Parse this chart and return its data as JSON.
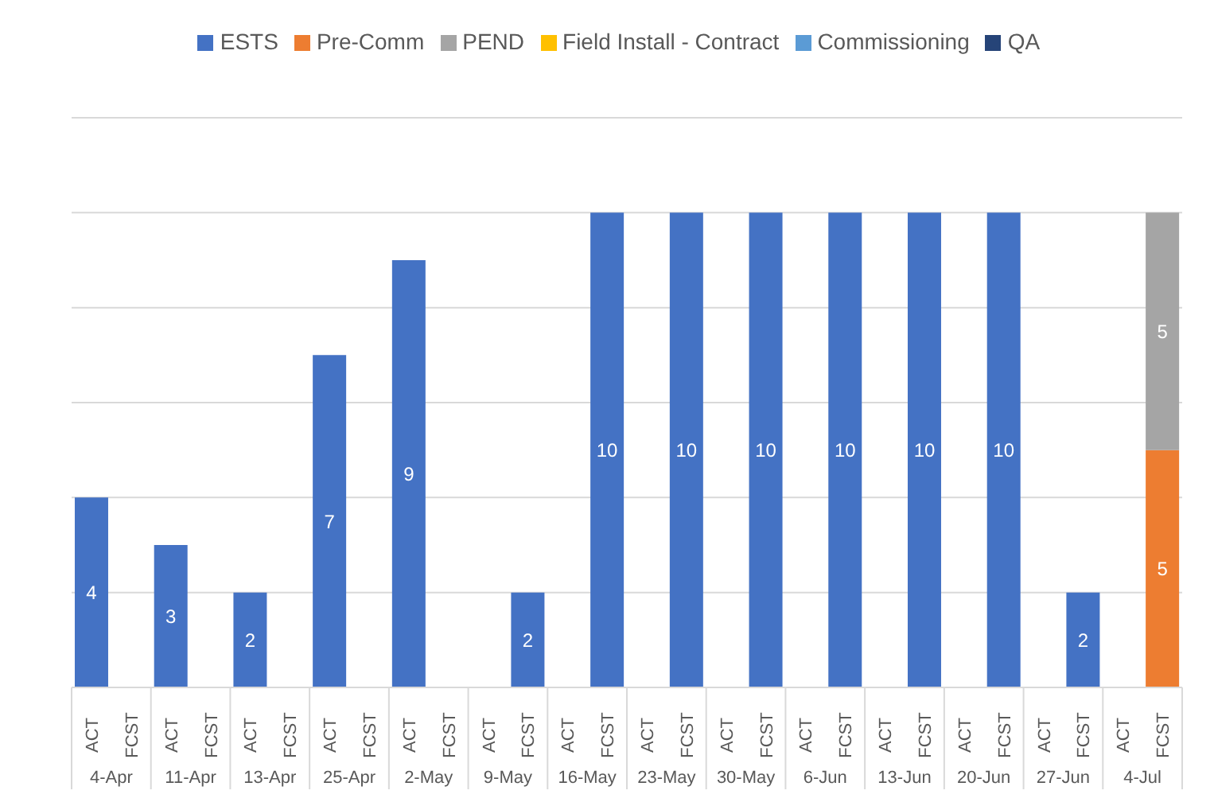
{
  "chart_data": {
    "type": "bar",
    "stacked": true,
    "categories": [
      "ACT",
      "FCST",
      "ACT",
      "FCST",
      "ACT",
      "FCST",
      "ACT",
      "FCST",
      "ACT",
      "FCST",
      "ACT",
      "FCST",
      "ACT",
      "FCST",
      "ACT",
      "FCST",
      "ACT",
      "FCST",
      "ACT",
      "FCST",
      "ACT",
      "FCST",
      "ACT",
      "FCST",
      "ACT",
      "FCST",
      "ACT",
      "FCST"
    ],
    "annotations": [
      "4-Apr",
      "11-Apr",
      "13-Apr",
      "25-Apr",
      "2-May",
      "9-May",
      "16-May",
      "23-May",
      "30-May",
      "6-Jun",
      "13-Jun",
      "20-Jun",
      "27-Jun",
      "4-Jul"
    ],
    "series": [
      {
        "name": "ESTS",
        "color": "#4472c4",
        "values": [
          4,
          null,
          3,
          null,
          2,
          null,
          7,
          null,
          9,
          null,
          null,
          2,
          null,
          10,
          null,
          10,
          null,
          10,
          null,
          10,
          null,
          10,
          null,
          10,
          null,
          2,
          null,
          null
        ]
      },
      {
        "name": "Pre-Comm",
        "color": "#ed7d31",
        "values": [
          null,
          null,
          null,
          null,
          null,
          null,
          null,
          null,
          null,
          null,
          null,
          null,
          null,
          null,
          null,
          null,
          null,
          null,
          null,
          null,
          null,
          null,
          null,
          null,
          null,
          null,
          null,
          5
        ]
      },
      {
        "name": "PEND",
        "color": "#a5a5a5",
        "values": [
          null,
          null,
          null,
          null,
          null,
          null,
          null,
          null,
          null,
          null,
          null,
          null,
          null,
          null,
          null,
          null,
          null,
          null,
          null,
          null,
          null,
          null,
          null,
          null,
          null,
          null,
          null,
          5
        ]
      },
      {
        "name": "Field Install - Contract",
        "color": "#ffc000",
        "values": [
          null,
          null,
          null,
          null,
          null,
          null,
          null,
          null,
          null,
          null,
          null,
          null,
          null,
          null,
          null,
          null,
          null,
          null,
          null,
          null,
          null,
          null,
          null,
          null,
          null,
          null,
          null,
          null
        ]
      },
      {
        "name": "Commissioning",
        "color": "#5b9bd5",
        "values": [
          null,
          null,
          null,
          null,
          null,
          null,
          null,
          null,
          null,
          null,
          null,
          null,
          null,
          null,
          null,
          null,
          null,
          null,
          null,
          null,
          null,
          null,
          null,
          null,
          null,
          null,
          null,
          null
        ]
      },
      {
        "name": "QA",
        "color": "#264478",
        "values": [
          null,
          null,
          null,
          null,
          null,
          null,
          null,
          null,
          null,
          null,
          null,
          null,
          null,
          null,
          null,
          null,
          null,
          null,
          null,
          null,
          null,
          null,
          null,
          null,
          null,
          null,
          null,
          null
        ]
      }
    ],
    "ylim": [
      0,
      12
    ],
    "yticks": [
      {
        "value": 0,
        "label": null
      },
      {
        "value": 2,
        "label": null
      },
      {
        "value": 4,
        "label": null
      },
      {
        "value": 6,
        "label": null
      },
      {
        "value": 8,
        "label": null
      },
      {
        "value": 10,
        "label": null
      },
      {
        "value": 12,
        "label": null
      }
    ],
    "grid": "y",
    "tick_labels": "x",
    "legend": "top",
    "data_labels": true
  }
}
